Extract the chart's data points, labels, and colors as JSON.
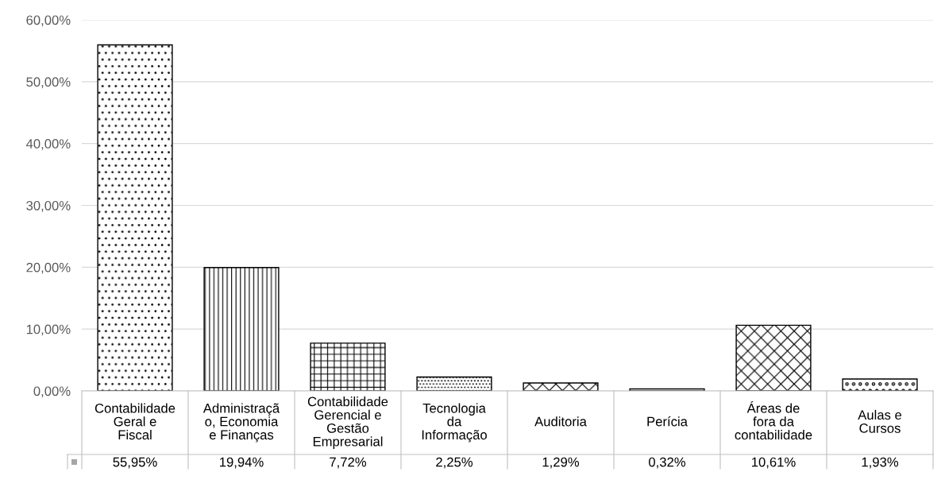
{
  "chart_data": {
    "type": "bar",
    "categories": [
      "Contabilidade Geral e Fiscal",
      "Administração, Economia e Finanças",
      "Contabilidade Gerencial e Gestão Empresarial",
      "Tecnologia da Informação",
      "Auditoria",
      "Perícia",
      "Áreas de fora da contabilidade",
      "Aulas e Cursos"
    ],
    "values": [
      55.95,
      19.94,
      7.72,
      2.25,
      1.29,
      0.32,
      10.61,
      1.93
    ],
    "value_labels": [
      "55,95%",
      "19,94%",
      "7,72%",
      "2,25%",
      "1,29%",
      "0,32%",
      "10,61%",
      "1,93%"
    ],
    "color": "#000000",
    "ylim": [
      0,
      60
    ],
    "yticks": [
      {
        "value": 0,
        "label": "0,00%"
      },
      {
        "value": 10,
        "label": "10,00%"
      },
      {
        "value": 20,
        "label": "20,00%"
      },
      {
        "value": 30,
        "label": "30,00%"
      },
      {
        "value": 40,
        "label": "40,00%"
      },
      {
        "value": 50,
        "label": "50,00%"
      },
      {
        "value": 60,
        "label": "60,00%"
      }
    ],
    "grid": "y"
  }
}
